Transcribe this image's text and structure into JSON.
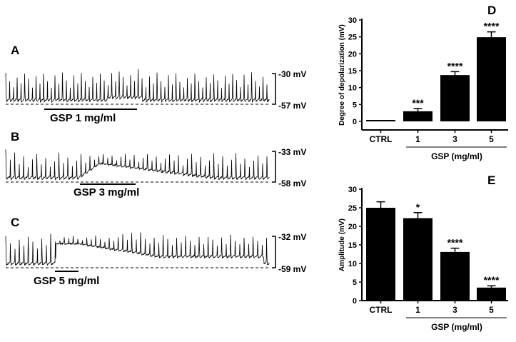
{
  "traces": [
    {
      "panel": "A",
      "top_label": "-30 mV",
      "bottom_label": "-57 mV",
      "treatment": "GSP 1 mg/ml"
    },
    {
      "panel": "B",
      "top_label": "-33 mV",
      "bottom_label": "-58 mV",
      "treatment": "GSP 3 mg/ml"
    },
    {
      "panel": "C",
      "top_label": "-32 mV",
      "bottom_label": "-59 mV",
      "treatment": "GSP 5 mg/ml"
    }
  ],
  "chart_data": [
    {
      "panel": "D",
      "type": "bar",
      "categories": [
        "CTRL",
        "1",
        "3",
        "5"
      ],
      "values": [
        0,
        3.0,
        13.7,
        24.9
      ],
      "errors": [
        0,
        0.8,
        1.0,
        1.6
      ],
      "significance": [
        "",
        "***",
        "****",
        "****"
      ],
      "ylabel": "Degree of depolarization (mV)",
      "xlabel": "GSP (mg/ml)",
      "yticks": [
        0,
        5,
        10,
        15,
        20,
        25,
        30
      ],
      "ylim": [
        -2.5,
        30
      ],
      "bar_color": "#000000"
    },
    {
      "panel": "E",
      "type": "bar",
      "categories": [
        "CTRL",
        "1",
        "3",
        "5"
      ],
      "values": [
        25.0,
        22.2,
        13.1,
        3.5
      ],
      "errors": [
        1.6,
        1.5,
        1.0,
        0.5
      ],
      "significance": [
        "",
        "*",
        "****",
        "****"
      ],
      "ylabel": "Amplitude (mV)",
      "xlabel": "GSP (mg/ml)",
      "yticks": [
        0,
        5,
        10,
        15,
        20,
        25,
        30
      ],
      "ylim": [
        0,
        30
      ],
      "bar_color": "#000000"
    }
  ]
}
